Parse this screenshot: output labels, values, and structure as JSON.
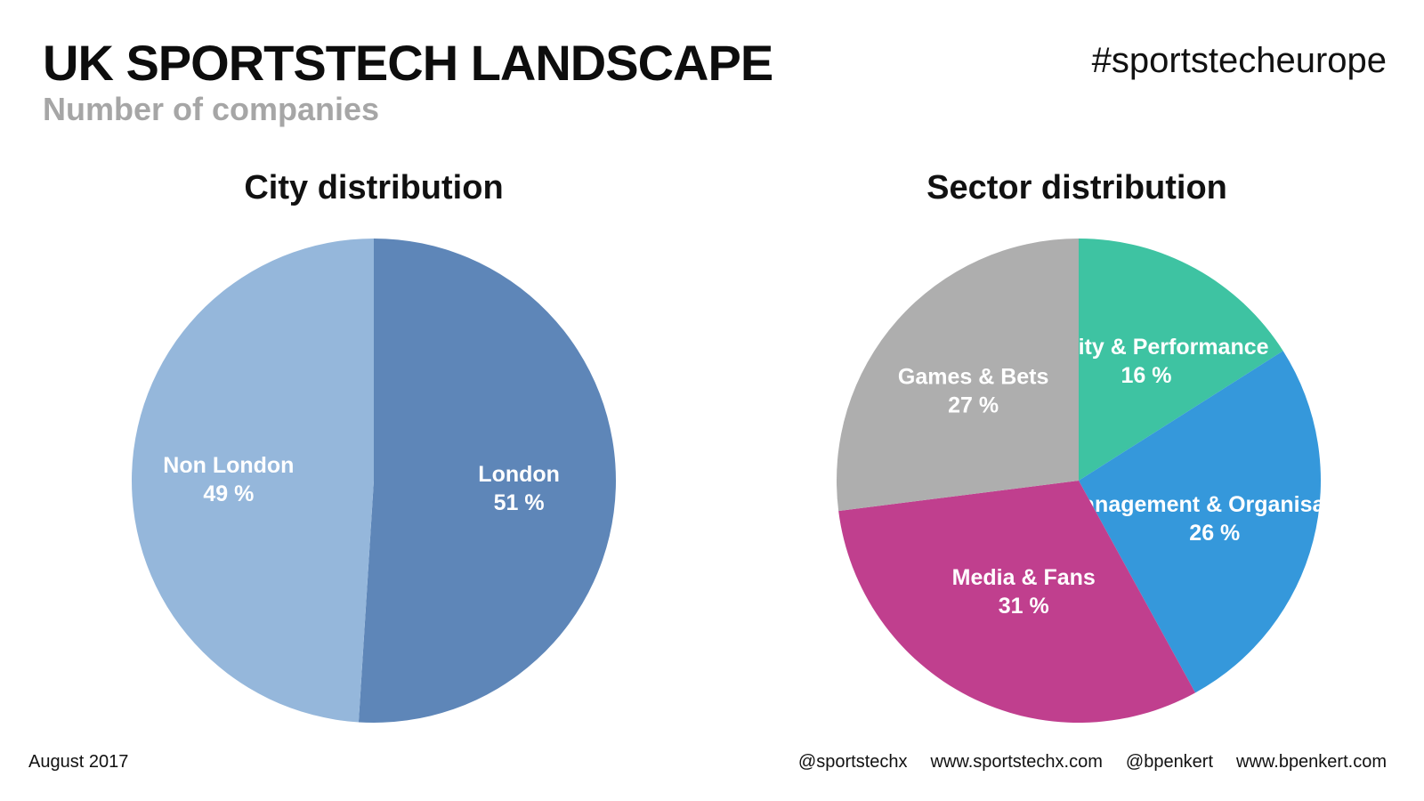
{
  "header": {
    "title": "UK SPORTSTECH LANDSCAPE",
    "subtitle": "Number of companies",
    "hashtag": "#sportstecheurope"
  },
  "chart_data": [
    {
      "type": "pie",
      "title": "City distribution",
      "slices": [
        {
          "label": "London",
          "value": 51,
          "display": "51 %",
          "color": "#5e86b8"
        },
        {
          "label": "Non London",
          "value": 49,
          "display": "49 %",
          "color": "#95b7db"
        }
      ]
    },
    {
      "type": "pie",
      "title": "Sector distribution",
      "slices": [
        {
          "label": "Activity & Performance",
          "value": 16,
          "display": "16 %",
          "color": "#3ec3a2"
        },
        {
          "label": "Management & Organisation",
          "value": 26,
          "display": "26 %",
          "color": "#3598db"
        },
        {
          "label": "Media & Fans",
          "value": 31,
          "display": "31 %",
          "color": "#c03f8e"
        },
        {
          "label": "Games & Bets",
          "value": 27,
          "display": "27 %",
          "color": "#aeaeae"
        }
      ]
    }
  ],
  "footer": {
    "date": "August 2017",
    "links": [
      "@sportstechx",
      "www.sportstechx.com",
      "@bpenkert",
      "www.bpenkert.com"
    ]
  }
}
